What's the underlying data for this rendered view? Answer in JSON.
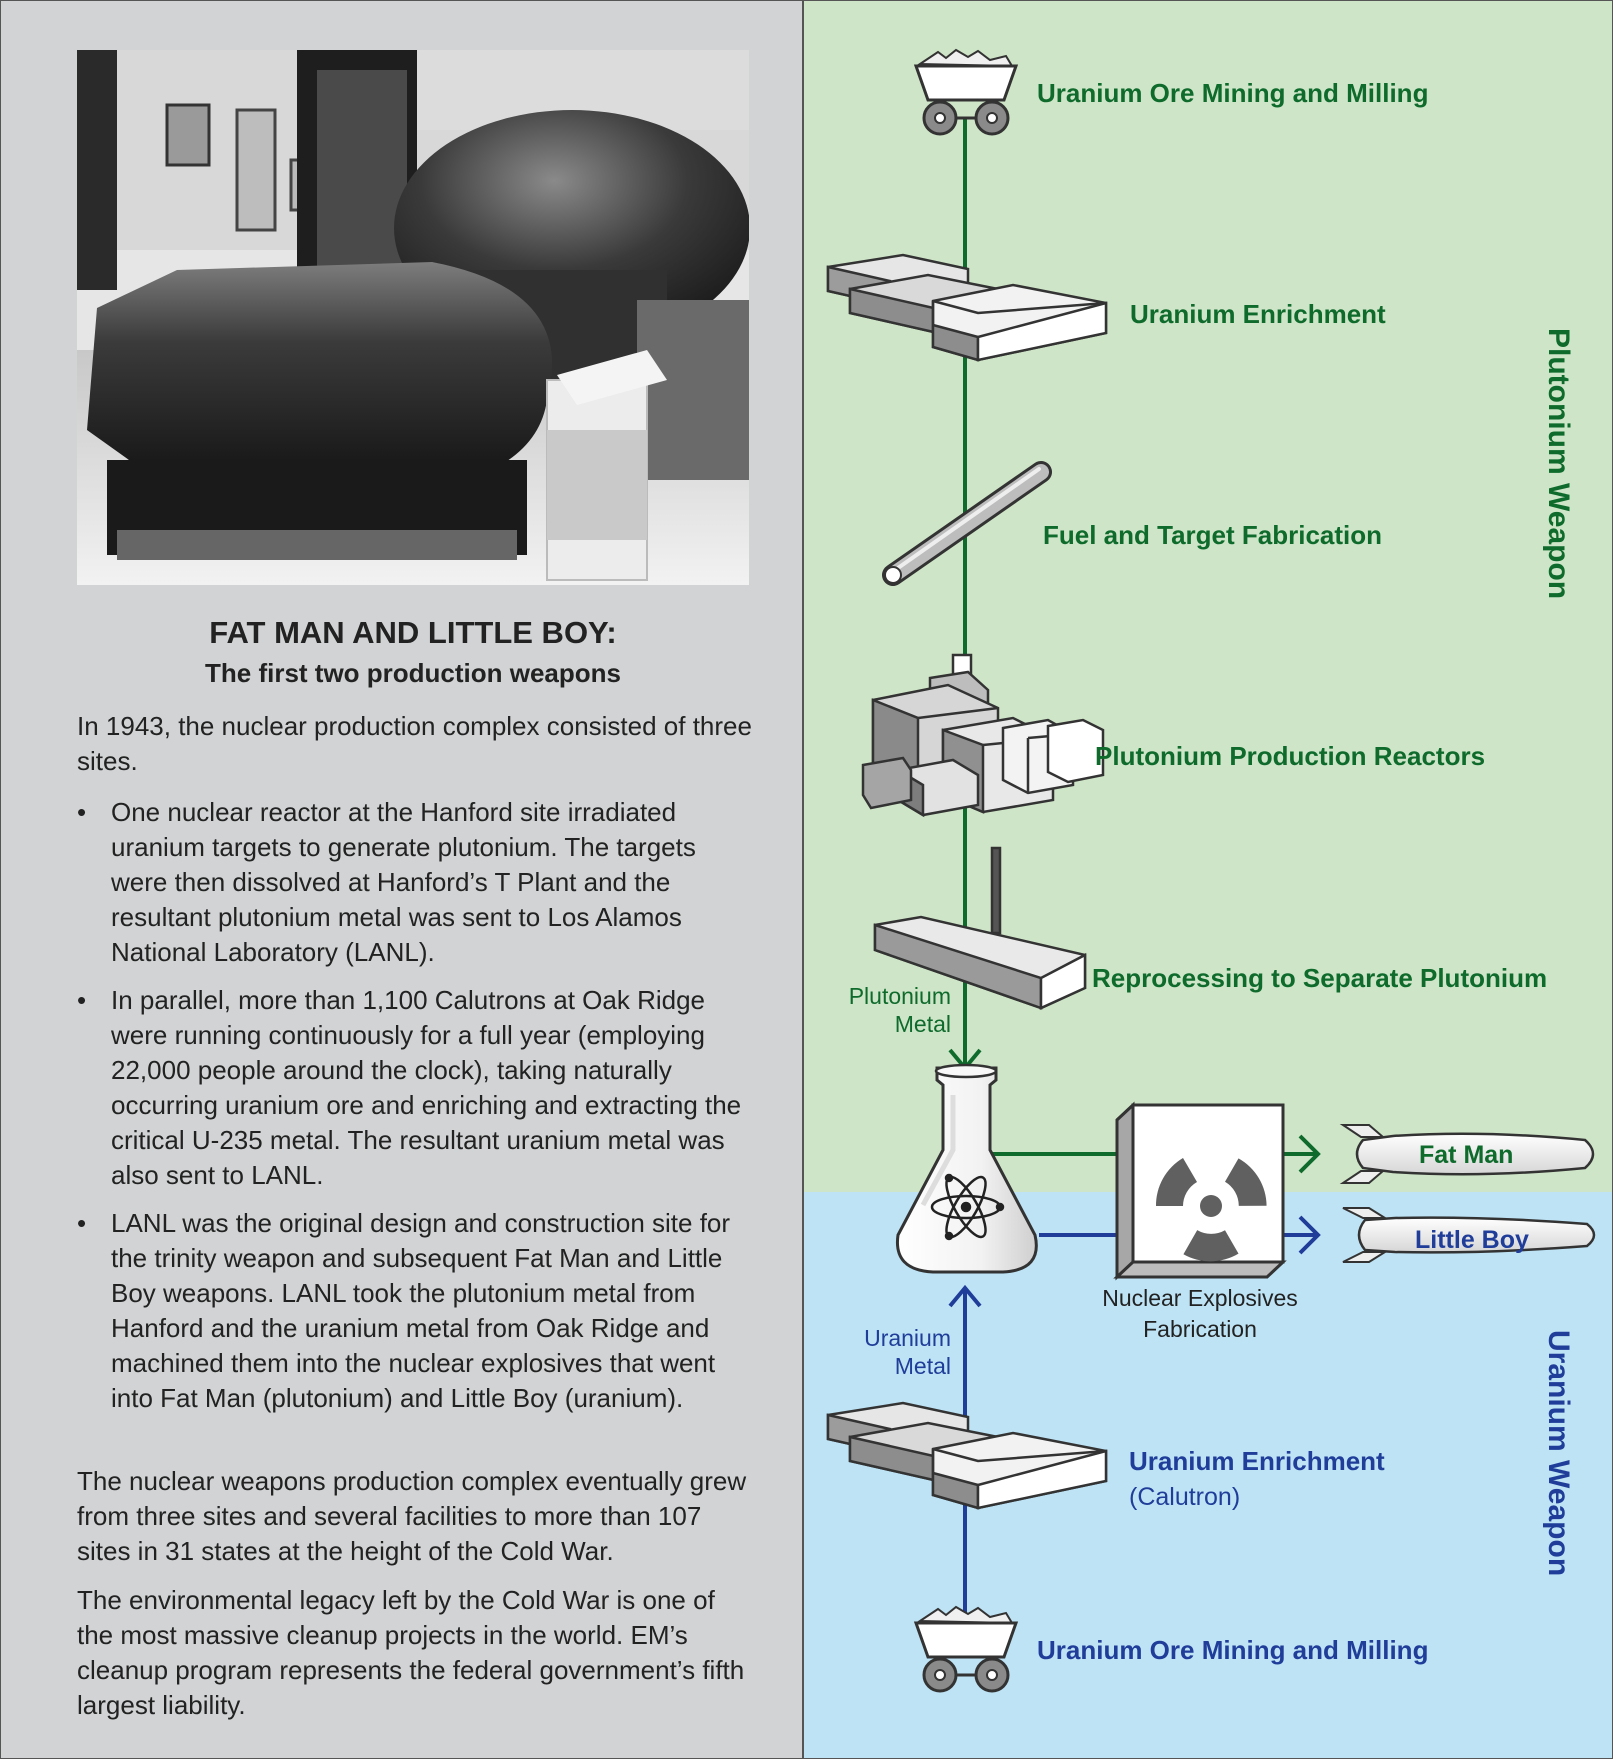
{
  "sidebar": {
    "title": "FAT MAN AND LITTLE BOY:",
    "subtitle": "The first two production weapons",
    "intro": "In 1943, the nuclear production complex consisted of three sites.",
    "bullets": [
      "One nuclear reactor at the Hanford site irradiated uranium targets to generate plutonium. The targets were then dissolved at Hanford’s T Plant and the resultant plutonium metal was sent to Los Alamos National Laboratory (LANL).",
      "In parallel, more than 1,100 Calutrons at Oak Ridge were running continuously for a full year (employing 22,000 people around the clock), taking naturally occurring uranium ore and enriching and extracting the critical U-235 metal. The resultant uranium metal was also sent to LANL.",
      "LANL was the original design and construction site for the trinity weapon and subsequent Fat Man and Little Boy weapons. LANL took the plutonium metal from Hanford and the uranium metal from Oak Ridge and machined them into the nuclear explosives that went into Fat Man (plutonium) and Little Boy (uranium)."
    ],
    "para2": "The nuclear weapons production complex eventually grew from three sites and several facilities to more than 107 sites in 31 states at the height of the Cold War.",
    "para3": "The environmental legacy left by the Cold War is one of the most massive cleanup projects in the world. EM’s cleanup program represents the federal government’s fifth largest liability."
  },
  "diagram": {
    "plutonium_label": "Plutonium Weapon",
    "uranium_label": "Uranium Weapon",
    "pu_steps": [
      "Uranium Ore Mining and Milling",
      "Uranium Enrichment",
      "Fuel and Target Fabrication",
      "Plutonium Production Reactors",
      "Reprocessing to Separate Plutonium"
    ],
    "pu_metal": [
      "Plutonium",
      "Metal"
    ],
    "u_steps": [
      "Uranium Enrichment",
      "(Calutron)",
      "Uranium Ore Mining and Milling"
    ],
    "u_metal": [
      "Uranium",
      "Metal"
    ],
    "fabrication": [
      "Nuclear Explosives",
      "Fabrication"
    ],
    "fat_man": "Fat Man",
    "little_boy": "Little Boy",
    "colors": {
      "green_bg": "#cfe5c8",
      "blue_bg": "#bde3f5",
      "green": "#0e6b2c",
      "blue": "#1f3d99"
    },
    "icons": [
      "ore-cart-icon",
      "enrichment-plant-icon",
      "fuel-rod-icon",
      "reactor-complex-icon",
      "reprocessing-plant-icon",
      "flask-atom-icon",
      "radiation-box-icon",
      "bomb-icon"
    ]
  }
}
